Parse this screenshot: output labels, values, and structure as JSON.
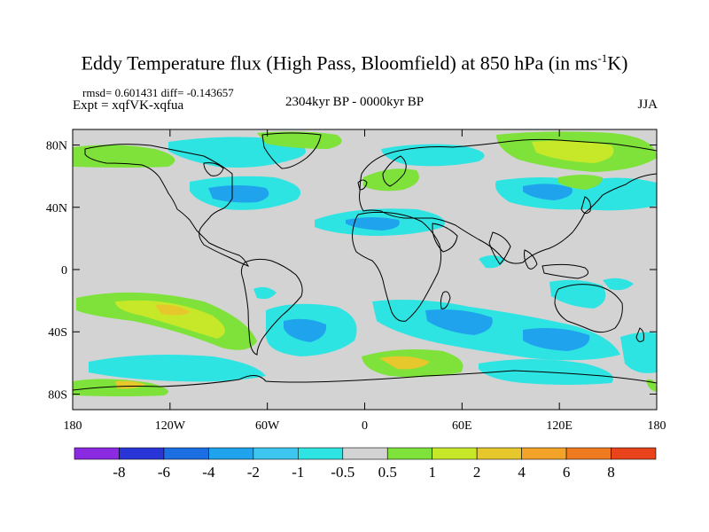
{
  "title": {
    "main": "Eddy Temperature flux (High Pass, Bloomfield) at 850 hPa (in ms",
    "sup": "-1",
    "tail": "K)"
  },
  "stats": "rmsd= 0.601431 diff= -0.143657",
  "experiment": "Expt = xqfVK-xqfua",
  "period": "2304kyr BP - 0000kyr BP",
  "season": "JJA",
  "lat_labels": [
    "80N",
    "40N",
    "0",
    "40S",
    "80S"
  ],
  "lon_labels": [
    "180",
    "120W",
    "60W",
    "0",
    "60E",
    "120E",
    "180"
  ],
  "colorbar": {
    "colors": [
      "#8a2be2",
      "#2a35d8",
      "#1c6fe3",
      "#1ea3ec",
      "#3ec6f0",
      "#2ee4e2",
      "#d3d3d3",
      "#7ee23a",
      "#c6e829",
      "#e7c82c",
      "#f2a328",
      "#f07a20",
      "#e8431b"
    ],
    "labels": [
      "-8",
      "-6",
      "-4",
      "-2",
      "-1",
      "-0.5",
      "0.5",
      "1",
      "2",
      "4",
      "6",
      "8"
    ]
  }
}
